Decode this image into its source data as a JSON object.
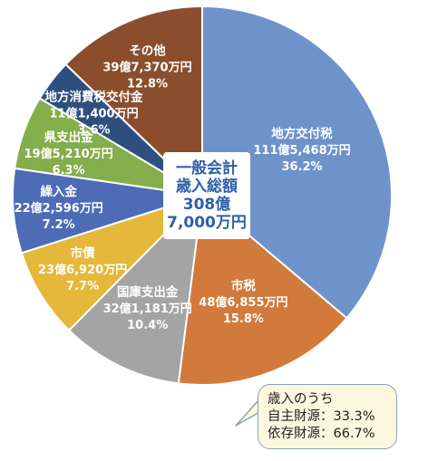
{
  "chart_data": {
    "type": "pie",
    "title": "",
    "center_label": [
      "一般会計",
      "歳入総額",
      "308億",
      "7,000万円"
    ],
    "slices": [
      {
        "name": "地方交付税",
        "amount": "111億5,468万円",
        "percent": "36.2%",
        "value": 36.2,
        "color": "#6e93cb"
      },
      {
        "name": "市税",
        "amount": "48億6,855万円",
        "percent": "15.8%",
        "value": 15.8,
        "color": "#d27a3c"
      },
      {
        "name": "国庫支出金",
        "amount": "32億1,181万円",
        "percent": "10.4%",
        "value": 10.4,
        "color": "#a4a4a4"
      },
      {
        "name": "市債",
        "amount": "23億6,920万円",
        "percent": "7.7%",
        "value": 7.7,
        "color": "#e5b73a"
      },
      {
        "name": "繰入金",
        "amount": "22億2,596万円",
        "percent": "7.2%",
        "value": 7.2,
        "color": "#4d6cb5"
      },
      {
        "name": "県支出金",
        "amount": "19億5,210万円",
        "percent": "6.3%",
        "value": 6.3,
        "color": "#84ad4c"
      },
      {
        "name": "地方消費税交付金",
        "amount": "11億1,400万円",
        "percent": "3.6%",
        "value": 3.6,
        "color": "#2f4f7f"
      },
      {
        "name": "その他",
        "amount": "39億7,370万円",
        "percent": "12.8%",
        "value": 12.8,
        "color": "#8a4e2d"
      }
    ],
    "note": [
      "歳入のうち",
      "自主財源：33.3%",
      "依存財源：66.7%"
    ]
  }
}
